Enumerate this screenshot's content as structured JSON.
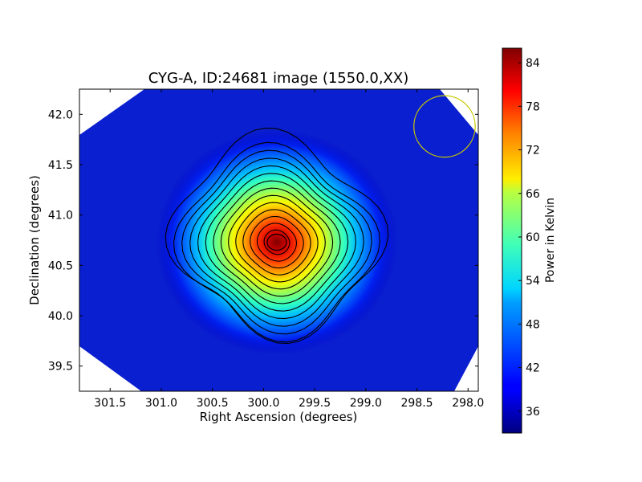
{
  "chart_data": {
    "type": "heatmap",
    "title": "CYG-A, ID:24681 image (1550.0,XX)",
    "xlabel": "Right Ascension (degrees)",
    "ylabel": "Declination (degrees)",
    "xlim": [
      301.8,
      297.9
    ],
    "ylim": [
      39.25,
      42.25
    ],
    "x_ticks": [
      301.5,
      301.0,
      300.5,
      300.0,
      299.5,
      299.0,
      298.5,
      298.0
    ],
    "x_tick_labels": [
      "301.5",
      "301.0",
      "300.5",
      "300.0",
      "299.5",
      "299.0",
      "298.5",
      "298.0"
    ],
    "y_ticks": [
      39.5,
      40.0,
      40.5,
      41.0,
      41.5,
      42.0
    ],
    "y_tick_labels": [
      "39.5",
      "40.0",
      "40.5",
      "41.0",
      "41.5",
      "42.0"
    ],
    "peak": {
      "ra": 299.87,
      "dec": 40.73,
      "value": 86
    },
    "background_level": 36,
    "colorbar": {
      "label": "Power in Kelvin",
      "range": [
        33,
        86
      ],
      "ticks": [
        36,
        42,
        48,
        54,
        60,
        66,
        72,
        78,
        84
      ],
      "tick_labels": [
        "36",
        "42",
        "48",
        "54",
        "60",
        "66",
        "72",
        "78",
        "84"
      ],
      "colormap": "jet"
    },
    "contours": {
      "count": 14,
      "color": "#000000"
    },
    "beam_marker": {
      "ra": 298.23,
      "dec": 41.88,
      "radius_deg": 0.3,
      "color": "#c8c800"
    },
    "grid": false,
    "legend": "none"
  },
  "colors": {
    "beam": "#c8c800",
    "contour": "#000000",
    "outside_footprint": "#ffffff"
  }
}
